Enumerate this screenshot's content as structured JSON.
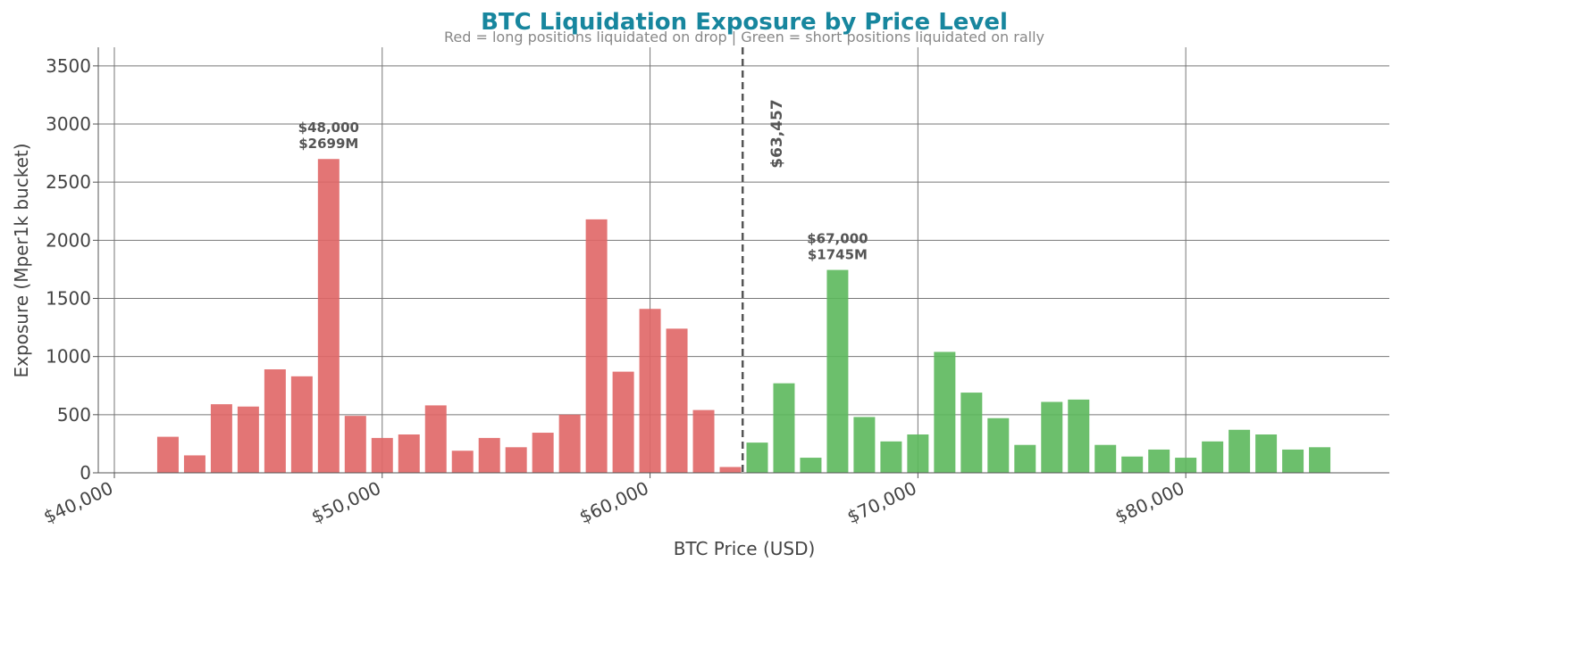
{
  "chart_data": {
    "type": "bar",
    "title": "BTC Liquidation Exposure by Price Level",
    "subtitle": "Red = long positions liquidated on drop  |  Green = short positions liquidated on rally",
    "xlabel": "BTC Price (USD)",
    "ylabel": "Exposure (Mper1k bucket)",
    "series": [
      {
        "color": "#e06666",
        "x": [
          42000,
          43000,
          44000,
          45000,
          46000,
          47000,
          48000,
          49000,
          50000,
          51000,
          52000,
          53000,
          54000,
          55000,
          56000,
          57000,
          58000,
          59000,
          60000,
          61000,
          62000,
          63000
        ],
        "values": [
          310,
          150,
          590,
          570,
          890,
          830,
          2699,
          490,
          300,
          330,
          580,
          190,
          300,
          220,
          345,
          500,
          2180,
          870,
          1410,
          1240,
          540,
          50
        ]
      },
      {
        "color": "#5cb85c",
        "x": [
          64000,
          65000,
          66000,
          67000,
          68000,
          69000,
          70000,
          71000,
          72000,
          73000,
          74000,
          75000,
          76000,
          77000,
          78000,
          79000,
          80000,
          81000,
          82000,
          83000,
          84000,
          85000
        ],
        "values": [
          260,
          770,
          130,
          1745,
          480,
          270,
          330,
          1040,
          690,
          470,
          240,
          610,
          630,
          240,
          140,
          200,
          130,
          270,
          370,
          330,
          200,
          220
        ]
      }
    ],
    "xlim": [
      39400,
      87600
    ],
    "xticks": [
      {
        "value": 40000,
        "label": "$40,000"
      },
      {
        "value": 50000,
        "label": "$50,000"
      },
      {
        "value": 60000,
        "label": "$60,000"
      },
      {
        "value": 70000,
        "label": "$70,000"
      },
      {
        "value": 80000,
        "label": "$80,000"
      }
    ],
    "ylim": [
      0,
      3660
    ],
    "yticks": [
      0,
      500,
      1000,
      1500,
      2000,
      2500,
      3000,
      3500
    ],
    "grid": true,
    "vline": {
      "x": 63457,
      "label": "$63,457",
      "color": "#555555"
    },
    "annotations": [
      {
        "x": 48000,
        "y": 2699,
        "lines": [
          "$48,000",
          "$2699M"
        ]
      },
      {
        "x": 67000,
        "y": 1745,
        "lines": [
          "$67,000",
          "$1745M"
        ]
      }
    ]
  }
}
